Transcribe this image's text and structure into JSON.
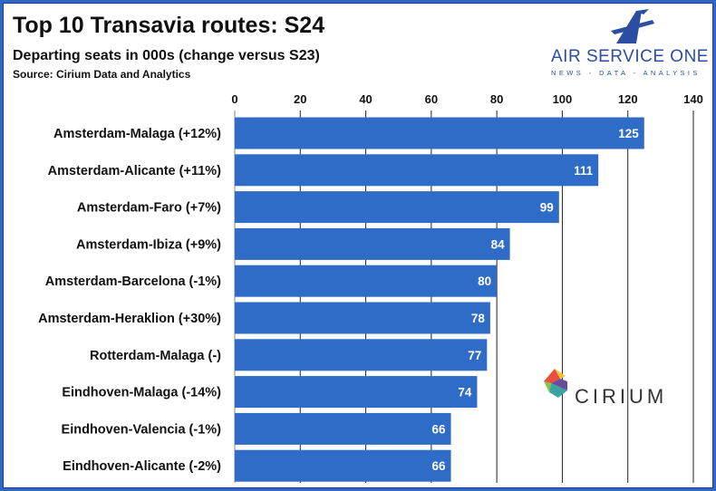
{
  "header": {
    "title": "Top 10 Transavia routes: S24",
    "subtitle": "Departing seats in 000s (change versus S23)",
    "source": "Source: Cirium Data and Analytics"
  },
  "brand": {
    "name": "AIR SERVICE ONE",
    "tagline": "NEWS - DATA - ANALYSIS",
    "icon": "airplane-a-logo",
    "color": "#2b4ea3"
  },
  "partner_logo": {
    "name": "CIRIUM",
    "icon": "cirium-logo"
  },
  "colors": {
    "bar": "#2f6cc7",
    "frame": "#2f68c4"
  },
  "chart_data": {
    "type": "bar",
    "orientation": "horizontal",
    "title": "Top 10 Transavia routes: S24",
    "subtitle": "Departing seats in 000s (change versus S23)",
    "categories": [
      "Amsterdam-Malaga (+12%)",
      "Amsterdam-Alicante (+11%)",
      "Amsterdam-Faro (+7%)",
      "Amsterdam-Ibiza (+9%)",
      "Amsterdam-Barcelona (-1%)",
      "Amsterdam-Heraklion (+30%)",
      "Rotterdam-Malaga (-)",
      "Eindhoven-Malaga (-14%)",
      "Eindhoven-Valencia (-1%)",
      "Eindhoven-Alicante (-2%)"
    ],
    "values": [
      125,
      111,
      99,
      84,
      80,
      78,
      77,
      74,
      66,
      66
    ],
    "xlim": [
      0,
      140
    ],
    "xticks": [
      0,
      20,
      40,
      60,
      80,
      100,
      120,
      140
    ],
    "x_axis_position": "top",
    "grid": true,
    "data_labels": true
  }
}
